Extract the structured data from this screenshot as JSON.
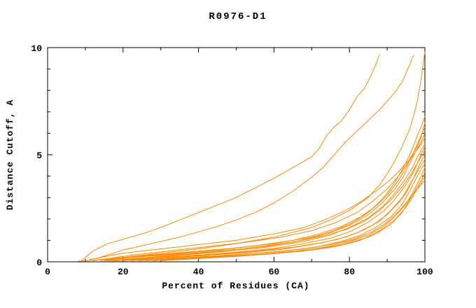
{
  "chart_data": {
    "type": "line",
    "title": "R0976-D1",
    "xlabel": "Percent of Residues (CA)",
    "ylabel": "Distance Cutoff, A",
    "xlim": [
      0,
      100
    ],
    "ylim": [
      0,
      10
    ],
    "x_ticks": [
      0,
      20,
      40,
      60,
      80,
      100
    ],
    "x_minor_ticks": [
      10,
      30,
      50,
      70,
      90
    ],
    "y_ticks": [
      0,
      5,
      10
    ],
    "y_minor_ticks": [
      1,
      2,
      3,
      4,
      6,
      7,
      8,
      9
    ],
    "grid": false,
    "legend": "none",
    "line_color": "#ff8800",
    "series": [
      [
        [
          9,
          0.05
        ],
        [
          12,
          0.5
        ],
        [
          16,
          0.85
        ],
        [
          20,
          1.05
        ],
        [
          25,
          1.3
        ],
        [
          30,
          1.6
        ],
        [
          35,
          1.95
        ],
        [
          40,
          2.3
        ],
        [
          45,
          2.65
        ],
        [
          50,
          3.0
        ],
        [
          55,
          3.45
        ],
        [
          60,
          3.9
        ],
        [
          64,
          4.3
        ],
        [
          68,
          4.7
        ],
        [
          70,
          4.9
        ],
        [
          72,
          5.3
        ],
        [
          74,
          5.9
        ],
        [
          76,
          6.3
        ],
        [
          78,
          6.6
        ],
        [
          80,
          7.1
        ],
        [
          82,
          7.7
        ],
        [
          84,
          8.1
        ],
        [
          86,
          8.8
        ],
        [
          87,
          9.2
        ],
        [
          88,
          9.7
        ]
      ],
      [
        [
          13,
          0.15
        ],
        [
          20,
          0.55
        ],
        [
          25,
          0.75
        ],
        [
          30,
          0.95
        ],
        [
          35,
          1.15
        ],
        [
          40,
          1.4
        ],
        [
          45,
          1.65
        ],
        [
          50,
          1.95
        ],
        [
          55,
          2.3
        ],
        [
          60,
          2.75
        ],
        [
          65,
          3.3
        ],
        [
          70,
          3.95
        ],
        [
          73,
          4.4
        ],
        [
          76,
          5.0
        ],
        [
          79,
          5.6
        ],
        [
          82,
          6.1
        ],
        [
          85,
          6.6
        ],
        [
          88,
          7.1
        ],
        [
          90,
          7.5
        ],
        [
          92,
          7.9
        ],
        [
          94,
          8.4
        ],
        [
          95,
          8.8
        ],
        [
          96,
          9.2
        ],
        [
          97,
          9.65
        ]
      ],
      [
        [
          15,
          0.1
        ],
        [
          30,
          0.4
        ],
        [
          40,
          0.6
        ],
        [
          50,
          0.85
        ],
        [
          60,
          1.15
        ],
        [
          70,
          1.6
        ],
        [
          75,
          1.95
        ],
        [
          80,
          2.4
        ],
        [
          85,
          3.0
        ],
        [
          88,
          3.6
        ],
        [
          90,
          4.1
        ],
        [
          92,
          4.7
        ],
        [
          94,
          5.4
        ],
        [
          96,
          6.2
        ],
        [
          97,
          6.8
        ],
        [
          98,
          7.5
        ],
        [
          99,
          8.5
        ],
        [
          99.5,
          9.2
        ],
        [
          100,
          9.8
        ]
      ],
      [
        [
          10,
          0.05
        ],
        [
          20,
          0.2
        ],
        [
          30,
          0.35
        ],
        [
          40,
          0.5
        ],
        [
          50,
          0.65
        ],
        [
          60,
          0.85
        ],
        [
          70,
          1.15
        ],
        [
          75,
          1.4
        ],
        [
          80,
          1.75
        ],
        [
          85,
          2.3
        ],
        [
          88,
          2.8
        ],
        [
          90,
          3.2
        ],
        [
          92,
          3.7
        ],
        [
          94,
          4.3
        ],
        [
          96,
          5.0
        ],
        [
          97,
          5.4
        ],
        [
          98,
          5.9
        ],
        [
          99,
          6.3
        ],
        [
          100,
          6.8
        ]
      ],
      [
        [
          14,
          0.05
        ],
        [
          25,
          0.25
        ],
        [
          35,
          0.4
        ],
        [
          45,
          0.55
        ],
        [
          55,
          0.75
        ],
        [
          65,
          1.0
        ],
        [
          72,
          1.3
        ],
        [
          78,
          1.65
        ],
        [
          83,
          2.1
        ],
        [
          87,
          2.6
        ],
        [
          90,
          3.1
        ],
        [
          93,
          3.8
        ],
        [
          95,
          4.4
        ],
        [
          97,
          5.1
        ],
        [
          98,
          5.5
        ],
        [
          99,
          5.9
        ],
        [
          100,
          6.3
        ]
      ],
      [
        [
          16,
          0.05
        ],
        [
          26,
          0.2
        ],
        [
          36,
          0.35
        ],
        [
          46,
          0.5
        ],
        [
          56,
          0.7
        ],
        [
          66,
          0.95
        ],
        [
          74,
          1.3
        ],
        [
          80,
          1.7
        ],
        [
          85,
          2.2
        ],
        [
          89,
          2.8
        ],
        [
          92,
          3.4
        ],
        [
          94,
          3.9
        ],
        [
          96,
          4.6
        ],
        [
          98,
          5.3
        ],
        [
          99,
          5.6
        ],
        [
          100,
          6.0
        ]
      ],
      [
        [
          12,
          0.05
        ],
        [
          22,
          0.3
        ],
        [
          32,
          0.5
        ],
        [
          42,
          0.7
        ],
        [
          52,
          0.9
        ],
        [
          62,
          1.15
        ],
        [
          70,
          1.45
        ],
        [
          76,
          1.8
        ],
        [
          82,
          2.3
        ],
        [
          86,
          2.8
        ],
        [
          90,
          3.4
        ],
        [
          93,
          4.0
        ],
        [
          95,
          4.5
        ],
        [
          97,
          5.0
        ],
        [
          99,
          5.5
        ],
        [
          100,
          5.8
        ]
      ],
      [
        [
          18,
          0.05
        ],
        [
          28,
          0.2
        ],
        [
          38,
          0.35
        ],
        [
          48,
          0.5
        ],
        [
          58,
          0.68
        ],
        [
          68,
          0.95
        ],
        [
          75,
          1.25
        ],
        [
          80,
          1.6
        ],
        [
          85,
          2.05
        ],
        [
          89,
          2.6
        ],
        [
          92,
          3.2
        ],
        [
          95,
          3.9
        ],
        [
          97,
          4.5
        ],
        [
          98,
          4.9
        ],
        [
          99,
          5.2
        ],
        [
          100,
          5.5
        ]
      ],
      [
        [
          20,
          0.05
        ],
        [
          30,
          0.2
        ],
        [
          40,
          0.32
        ],
        [
          50,
          0.45
        ],
        [
          60,
          0.62
        ],
        [
          68,
          0.85
        ],
        [
          75,
          1.1
        ],
        [
          80,
          1.4
        ],
        [
          85,
          1.85
        ],
        [
          89,
          2.35
        ],
        [
          92,
          2.9
        ],
        [
          95,
          3.6
        ],
        [
          97,
          4.2
        ],
        [
          98,
          4.6
        ],
        [
          99,
          4.9
        ],
        [
          100,
          5.2
        ]
      ],
      [
        [
          22,
          0.05
        ],
        [
          32,
          0.18
        ],
        [
          42,
          0.3
        ],
        [
          52,
          0.42
        ],
        [
          62,
          0.58
        ],
        [
          70,
          0.8
        ],
        [
          77,
          1.05
        ],
        [
          82,
          1.35
        ],
        [
          86,
          1.7
        ],
        [
          90,
          2.2
        ],
        [
          93,
          2.75
        ],
        [
          95,
          3.2
        ],
        [
          97,
          3.9
        ],
        [
          98,
          4.3
        ],
        [
          99,
          4.7
        ],
        [
          100,
          5.0
        ]
      ],
      [
        [
          15,
          0.05
        ],
        [
          25,
          0.15
        ],
        [
          35,
          0.25
        ],
        [
          45,
          0.35
        ],
        [
          55,
          0.5
        ],
        [
          65,
          0.68
        ],
        [
          73,
          0.9
        ],
        [
          79,
          1.15
        ],
        [
          84,
          1.5
        ],
        [
          88,
          1.9
        ],
        [
          91,
          2.4
        ],
        [
          94,
          3.0
        ],
        [
          96,
          3.6
        ],
        [
          98,
          4.2
        ],
        [
          99,
          4.5
        ],
        [
          100,
          4.8
        ]
      ],
      [
        [
          24,
          0.05
        ],
        [
          34,
          0.15
        ],
        [
          44,
          0.25
        ],
        [
          54,
          0.38
        ],
        [
          64,
          0.52
        ],
        [
          72,
          0.72
        ],
        [
          78,
          0.95
        ],
        [
          83,
          1.25
        ],
        [
          87,
          1.6
        ],
        [
          91,
          2.1
        ],
        [
          94,
          2.7
        ],
        [
          96,
          3.3
        ],
        [
          98,
          4.0
        ],
        [
          99,
          4.3
        ],
        [
          100,
          4.6
        ]
      ],
      [
        [
          26,
          0.05
        ],
        [
          36,
          0.15
        ],
        [
          46,
          0.25
        ],
        [
          56,
          0.35
        ],
        [
          66,
          0.5
        ],
        [
          74,
          0.7
        ],
        [
          80,
          0.95
        ],
        [
          85,
          1.25
        ],
        [
          89,
          1.65
        ],
        [
          92,
          2.1
        ],
        [
          95,
          2.7
        ],
        [
          97,
          3.3
        ],
        [
          99,
          4.0
        ],
        [
          100,
          4.4
        ]
      ],
      [
        [
          28,
          0.05
        ],
        [
          38,
          0.15
        ],
        [
          48,
          0.25
        ],
        [
          58,
          0.35
        ],
        [
          68,
          0.5
        ],
        [
          76,
          0.7
        ],
        [
          82,
          0.95
        ],
        [
          87,
          1.3
        ],
        [
          91,
          1.75
        ],
        [
          94,
          2.3
        ],
        [
          96,
          2.9
        ],
        [
          98,
          3.5
        ],
        [
          99,
          3.8
        ],
        [
          100,
          4.2
        ]
      ],
      [
        [
          30,
          0.05
        ],
        [
          40,
          0.15
        ],
        [
          50,
          0.25
        ],
        [
          60,
          0.38
        ],
        [
          70,
          0.55
        ],
        [
          78,
          0.8
        ],
        [
          84,
          1.1
        ],
        [
          88,
          1.45
        ],
        [
          92,
          1.95
        ],
        [
          95,
          2.55
        ],
        [
          97,
          3.1
        ],
        [
          99,
          3.7
        ],
        [
          100,
          4.0
        ]
      ],
      [
        [
          17,
          0.04
        ],
        [
          27,
          0.12
        ],
        [
          37,
          0.2
        ],
        [
          47,
          0.3
        ],
        [
          57,
          0.42
        ],
        [
          67,
          0.58
        ],
        [
          75,
          0.8
        ],
        [
          81,
          1.05
        ],
        [
          86,
          1.4
        ],
        [
          90,
          1.85
        ],
        [
          93,
          2.35
        ],
        [
          96,
          2.95
        ],
        [
          98,
          3.4
        ],
        [
          99,
          3.6
        ],
        [
          100,
          3.8
        ]
      ],
      [
        [
          11,
          0.1
        ],
        [
          20,
          0.4
        ],
        [
          30,
          0.6
        ],
        [
          40,
          0.8
        ],
        [
          50,
          1.0
        ],
        [
          60,
          1.3
        ],
        [
          68,
          1.6
        ],
        [
          74,
          2.0
        ],
        [
          79,
          2.4
        ],
        [
          83,
          2.8
        ],
        [
          87,
          3.3
        ],
        [
          90,
          3.7
        ],
        [
          93,
          4.2
        ],
        [
          96,
          4.8
        ],
        [
          98,
          5.4
        ],
        [
          99,
          5.8
        ],
        [
          100,
          6.5
        ]
      ],
      [
        [
          8,
          0.03
        ],
        [
          18,
          0.15
        ],
        [
          28,
          0.28
        ],
        [
          38,
          0.4
        ],
        [
          48,
          0.55
        ],
        [
          58,
          0.72
        ],
        [
          66,
          0.95
        ],
        [
          73,
          1.2
        ],
        [
          79,
          1.5
        ],
        [
          84,
          1.9
        ],
        [
          88,
          2.4
        ],
        [
          91,
          2.9
        ],
        [
          94,
          3.5
        ],
        [
          96,
          4.0
        ],
        [
          98,
          4.6
        ],
        [
          99,
          5.0
        ],
        [
          100,
          5.4
        ]
      ]
    ]
  }
}
